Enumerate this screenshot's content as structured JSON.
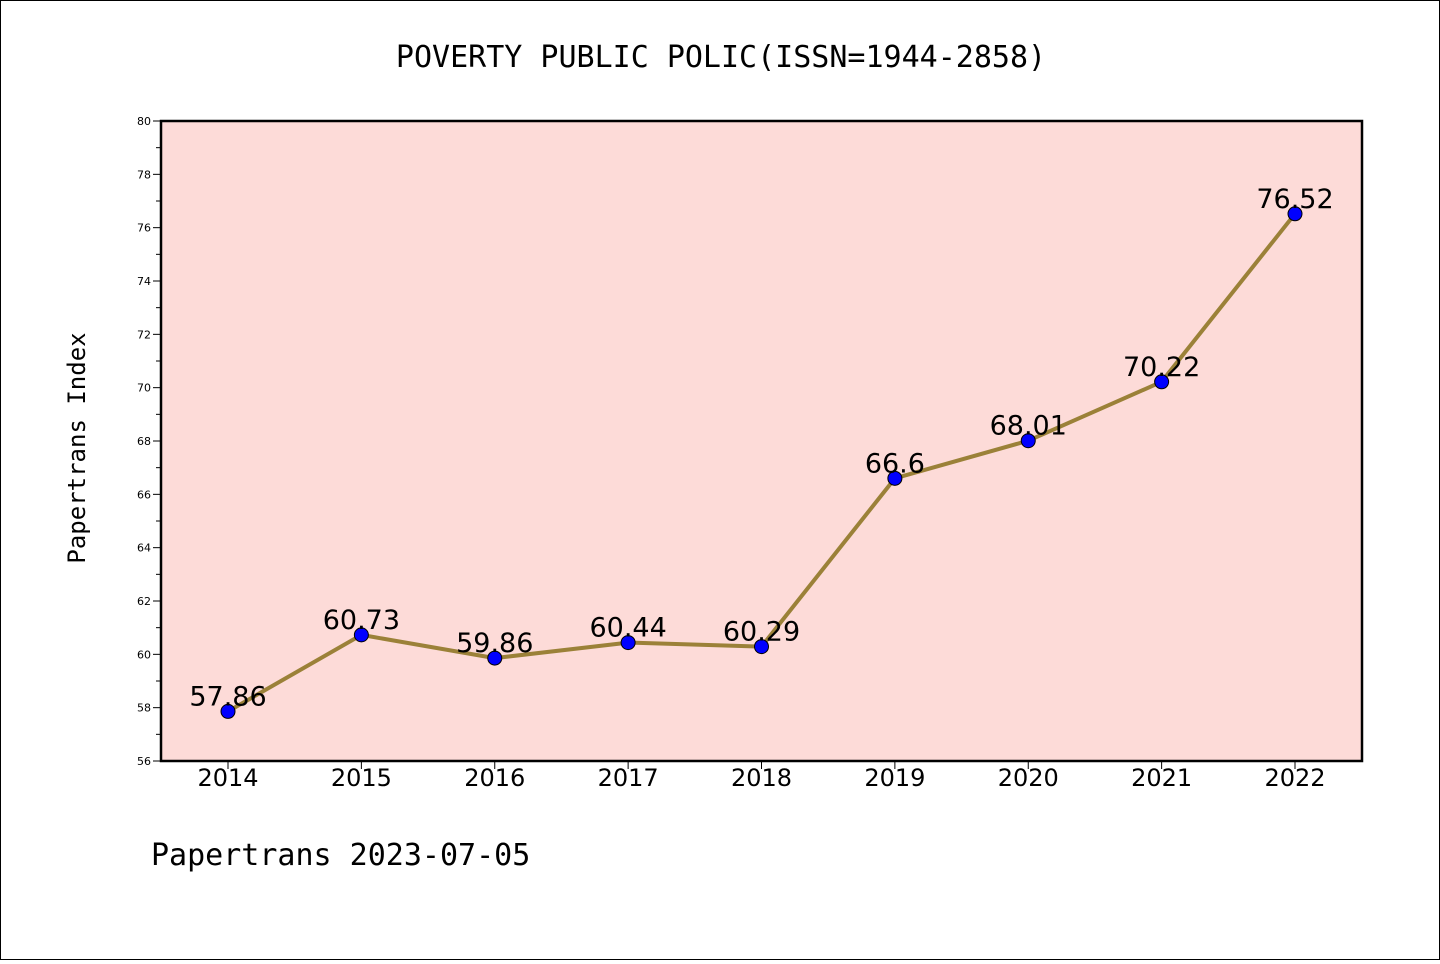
{
  "chart_data": {
    "type": "line",
    "title": "POVERTY PUBLIC POLIC(ISSN=1944-2858)",
    "xlabel": "",
    "ylabel": "Papertrans Index",
    "categories": [
      "2014",
      "2015",
      "2016",
      "2017",
      "2018",
      "2019",
      "2020",
      "2021",
      "2022"
    ],
    "values": [
      57.86,
      60.73,
      59.86,
      60.44,
      60.29,
      66.6,
      68.01,
      70.22,
      76.52
    ],
    "value_labels": [
      "57.86",
      "60.73",
      "59.86",
      "60.44",
      "60.29",
      "66.6",
      "68.01",
      "70.22",
      "76.52"
    ],
    "ylim": [
      56,
      80
    ],
    "yticks": [
      "56",
      "58",
      "60",
      "62",
      "64",
      "66",
      "68",
      "70",
      "72",
      "74",
      "76",
      "78",
      "80"
    ],
    "grid": false,
    "plot_background": "#fddbd8",
    "line_color": "#9b8138",
    "marker_color": "#0000ff"
  },
  "footer": "Papertrans 2023-07-05"
}
